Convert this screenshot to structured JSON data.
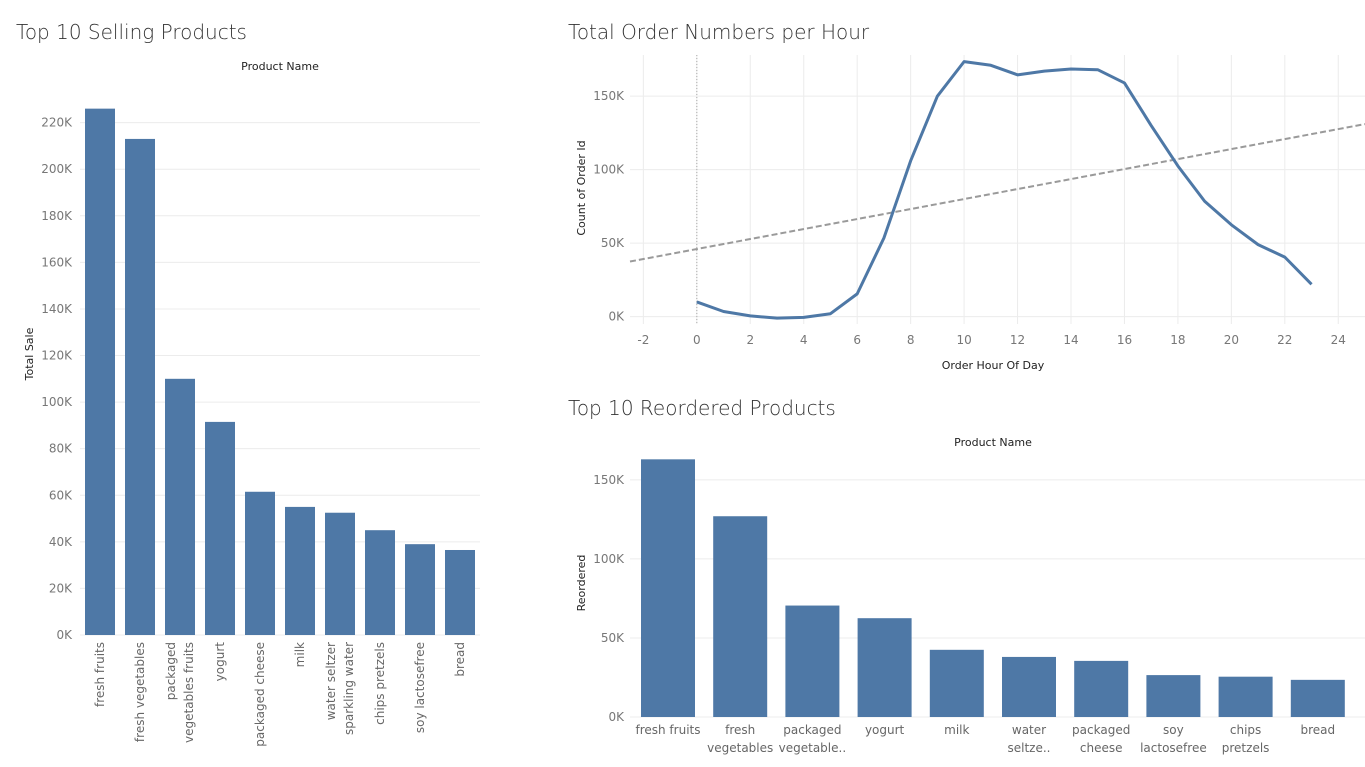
{
  "colors": {
    "bar": "#4e78a6",
    "line": "#4e78a6",
    "trend": "#9a9a9a",
    "grid": "#ececec"
  },
  "chart_data": [
    {
      "id": "top-selling",
      "type": "bar",
      "title": "Top 10 Selling Products",
      "header": "Product Name",
      "xlabel": "",
      "ylabel": "Total Sale",
      "ylim": [
        0,
        231000
      ],
      "yticks": [
        0,
        20000,
        40000,
        60000,
        80000,
        100000,
        120000,
        140000,
        160000,
        180000,
        200000,
        220000
      ],
      "ytick_labels": [
        "0K",
        "20K",
        "40K",
        "60K",
        "80K",
        "100K",
        "120K",
        "140K",
        "160K",
        "180K",
        "200K",
        "220K"
      ],
      "categories": [
        [
          "fresh fruits"
        ],
        [
          "fresh vegetables"
        ],
        [
          "packaged",
          "vegetables fruits"
        ],
        [
          "yogurt"
        ],
        [
          "packaged cheese"
        ],
        [
          "milk"
        ],
        [
          "water seltzer",
          "sparkling water"
        ],
        [
          "chips pretzels"
        ],
        [
          "soy lactosefree"
        ],
        [
          "bread"
        ]
      ],
      "values": [
        226000,
        213000,
        110000,
        91500,
        61500,
        55000,
        52500,
        45000,
        39000,
        36500
      ],
      "grid": true
    },
    {
      "id": "orders-per-hour",
      "type": "line",
      "title": "Total Order Numbers per Hour",
      "xlabel": "Order Hour Of Day",
      "ylabel": "Count of Order Id",
      "xlim": [
        -2.5,
        25
      ],
      "ylim": [
        -5000,
        178000
      ],
      "xticks": [
        -2,
        0,
        2,
        4,
        6,
        8,
        10,
        12,
        14,
        16,
        18,
        20,
        22,
        24
      ],
      "yticks": [
        0,
        50000,
        100000,
        150000
      ],
      "ytick_labels": [
        "0K",
        "50K",
        "100K",
        "150K"
      ],
      "x": [
        0,
        1,
        2,
        3,
        4,
        5,
        6,
        7,
        8,
        9,
        10,
        11,
        12,
        13,
        14,
        15,
        16,
        17,
        18,
        19,
        20,
        21,
        22,
        23
      ],
      "y": [
        10000,
        3500,
        500,
        -1000,
        -500,
        2000,
        15500,
        53500,
        106000,
        150000,
        173500,
        171000,
        164500,
        167000,
        168500,
        168000,
        159000,
        130000,
        102500,
        78500,
        62500,
        49000,
        40500,
        22000
      ],
      "trend": {
        "x": [
          -2.5,
          25
        ],
        "y": [
          37500,
          131000
        ]
      },
      "reference_x": 0,
      "grid": true
    },
    {
      "id": "top-reordered",
      "type": "bar",
      "title": "Top 10 Reordered Products",
      "header": "Product Name",
      "xlabel": "",
      "ylabel": "Reordered",
      "ylim": [
        0,
        167000
      ],
      "yticks": [
        0,
        50000,
        100000,
        150000
      ],
      "ytick_labels": [
        "0K",
        "50K",
        "100K",
        "150K"
      ],
      "categories": [
        [
          "fresh fruits"
        ],
        [
          "fresh",
          "vegetables"
        ],
        [
          "packaged",
          "vegetable.."
        ],
        [
          "yogurt"
        ],
        [
          "milk"
        ],
        [
          "water",
          "seltze.."
        ],
        [
          "packaged",
          "cheese"
        ],
        [
          "soy",
          "lactosefree"
        ],
        [
          "chips",
          "pretzels"
        ],
        [
          "bread"
        ]
      ],
      "values": [
        163000,
        127000,
        70500,
        62500,
        42500,
        38000,
        35500,
        26500,
        25500,
        23500
      ],
      "grid": true
    }
  ]
}
